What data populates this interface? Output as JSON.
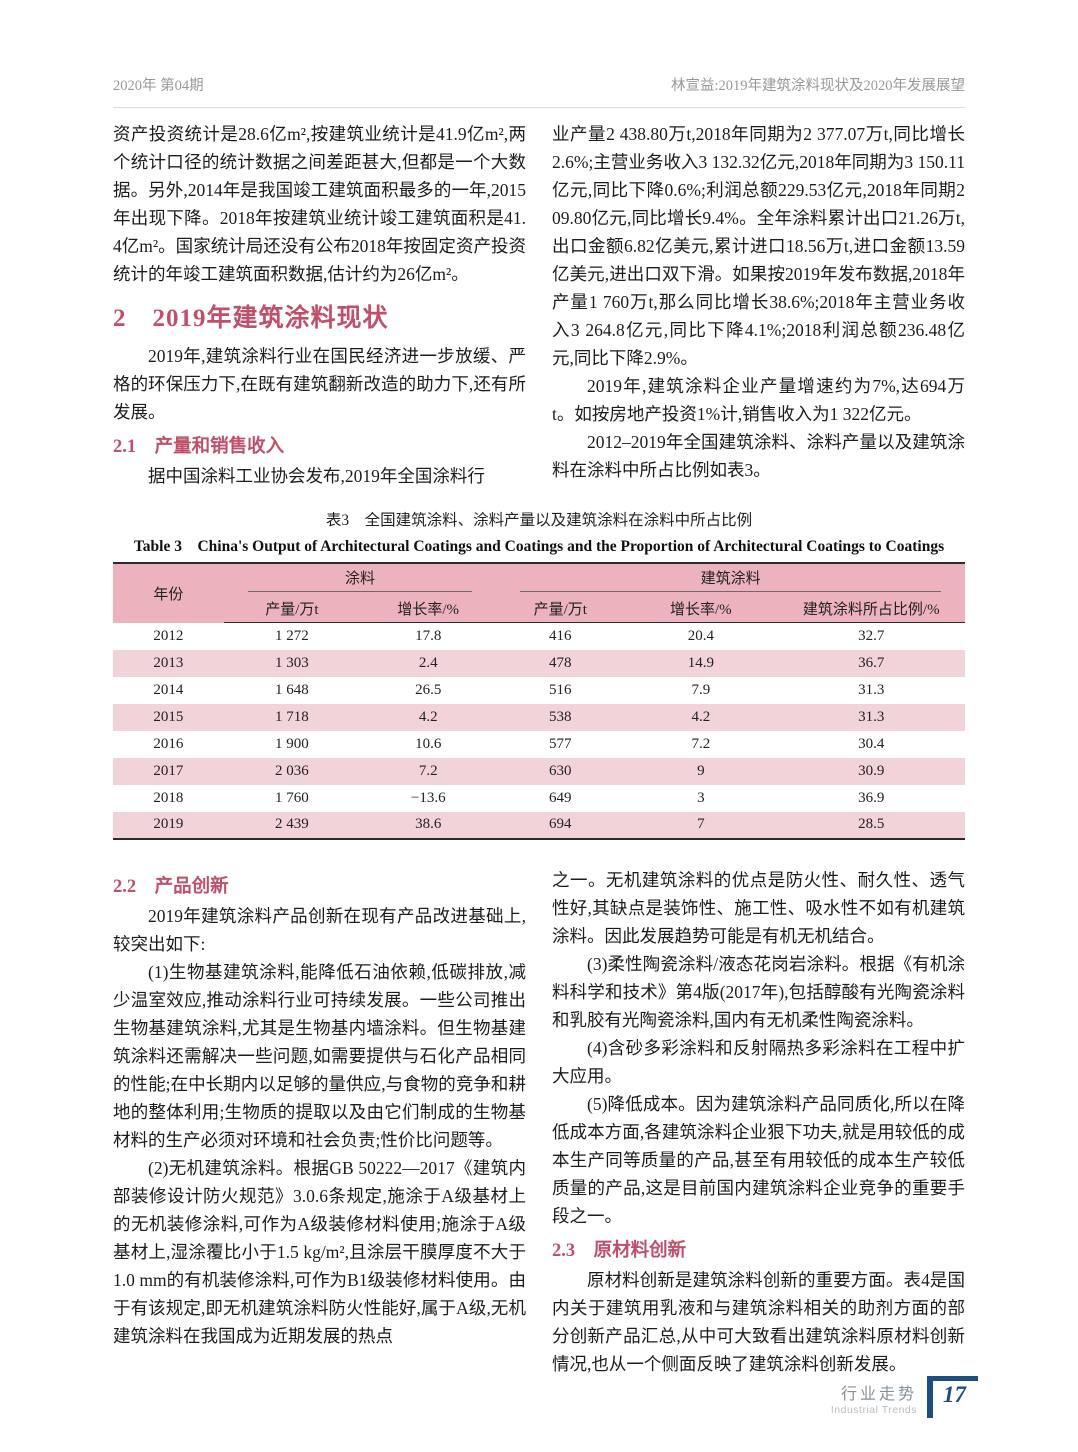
{
  "header": {
    "issue": "2020年 第04期",
    "running_title": "林宣益:2019年建筑涂料现状及2020年发展展望"
  },
  "top_left": {
    "p1": "资产投资统计是28.6亿m²,按建筑业统计是41.9亿m²,两个统计口径的统计数据之间差距甚大,但都是一个大数据。另外,2014年是我国竣工建筑面积最多的一年,2015年出现下降。2018年按建筑业统计竣工建筑面积是41.4亿m²。国家统计局还没有公布2018年按固定资产投资统计的年竣工建筑面积数据,估计约为26亿m²。",
    "sec2_title": "2　2019年建筑涂料现状",
    "p2": "2019年,建筑涂料行业在国民经济进一步放缓、严格的环保压力下,在既有建筑翻新改造的助力下,还有所发展。",
    "sec21_title": "2.1　产量和销售收入",
    "p3": "据中国涂料工业协会发布,2019年全国涂料行"
  },
  "top_right": {
    "p1": "业产量2 438.80万t,2018年同期为2 377.07万t,同比增长2.6%;主营业务收入3 132.32亿元,2018年同期为3 150.11亿元,同比下降0.6%;利润总额229.53亿元,2018年同期209.80亿元,同比增长9.4%。全年涂料累计出口21.26万t,出口金额6.82亿美元,累计进口18.56万t,进口金额13.59亿美元,进出口双下滑。如果按2019年发布数据,2018年产量1 760万t,那么同比增长38.6%;2018年主营业务收入3 264.8亿元,同比下降4.1%;2018利润总额236.48亿元,同比下降2.9%。",
    "p2": "2019年,建筑涂料企业产量增速约为7%,达694万t。如按房地产投资1%计,销售收入为1 322亿元。",
    "p3": "2012–2019年全国建筑涂料、涂料产量以及建筑涂料在涂料中所占比例如表3。"
  },
  "table": {
    "caption_cn": "表3　全国建筑涂料、涂料产量以及建筑涂料在涂料中所占比例",
    "caption_en": "Table 3　China's Output of Architectural Coatings and Coatings and the Proportion of Architectural Coatings to Coatings",
    "col_year": "年份",
    "groups": [
      "涂料",
      "建筑涂料"
    ],
    "subheaders": [
      "产量/万t",
      "增长率/%",
      "产量/万t",
      "增长率/%",
      "建筑涂料所占比例/%"
    ],
    "rows": [
      [
        "2012",
        "1 272",
        "17.8",
        "416",
        "20.4",
        "32.7"
      ],
      [
        "2013",
        "1 303",
        "2.4",
        "478",
        "14.9",
        "36.7"
      ],
      [
        "2014",
        "1 648",
        "26.5",
        "516",
        "7.9",
        "31.3"
      ],
      [
        "2015",
        "1 718",
        "4.2",
        "538",
        "4.2",
        "31.3"
      ],
      [
        "2016",
        "1 900",
        "10.6",
        "577",
        "7.2",
        "30.4"
      ],
      [
        "2017",
        "2 036",
        "7.2",
        "630",
        "9",
        "30.9"
      ],
      [
        "2018",
        "1 760",
        "−13.6",
        "649",
        "3",
        "36.9"
      ],
      [
        "2019",
        "2 439",
        "38.6",
        "694",
        "7",
        "28.5"
      ]
    ]
  },
  "bottom_left": {
    "sec22_title": "2.2　产品创新",
    "p1": "2019年建筑涂料产品创新在现有产品改进基础上,较突出如下:",
    "p2": "(1)生物基建筑涂料,能降低石油依赖,低碳排放,减少温室效应,推动涂料行业可持续发展。一些公司推出生物基建筑涂料,尤其是生物基内墙涂料。但生物基建筑涂料还需解决一些问题,如需要提供与石化产品相同的性能;在中长期内以足够的量供应,与食物的竞争和耕地的整体利用;生物质的提取以及由它们制成的生物基材料的生产必须对环境和社会负责;性价比问题等。",
    "p3": "(2)无机建筑涂料。根据GB 50222—2017《建筑内部装修设计防火规范》3.0.6条规定,施涂于A级基材上的无机装修涂料,可作为A级装修材料使用;施涂于A级基材上,湿涂覆比小于1.5 kg/m²,且涂层干膜厚度不大于1.0 mm的有机装修涂料,可作为B1级装修材料使用。由于有该规定,即无机建筑涂料防火性能好,属于A级,无机建筑涂料在我国成为近期发展的热点"
  },
  "bottom_right": {
    "p1": "之一。无机建筑涂料的优点是防火性、耐久性、透气性好,其缺点是装饰性、施工性、吸水性不如有机建筑涂料。因此发展趋势可能是有机无机结合。",
    "p2": "(3)柔性陶瓷涂料/液态花岗岩涂料。根据《有机涂料科学和技术》第4版(2017年),包括醇酸有光陶瓷涂料和乳胶有光陶瓷涂料,国内有无机柔性陶瓷涂料。",
    "p3": "(4)含砂多彩涂料和反射隔热多彩涂料在工程中扩大应用。",
    "p4": "(5)降低成本。因为建筑涂料产品同质化,所以在降低成本方面,各建筑涂料企业狠下功夫,就是用较低的成本生产同等质量的产品,甚至有用较低的成本生产较低质量的产品,这是目前国内建筑涂料企业竞争的重要手段之一。",
    "sec23_title": "2.3　原材料创新",
    "p5": "原材料创新是建筑涂料创新的重要方面。表4是国内关于建筑用乳液和与建筑涂料相关的助剂方面的部分创新产品汇总,从中可大致看出建筑涂料原材料创新情况,也从一个侧面反映了建筑涂料创新发展。"
  },
  "footer": {
    "cn": "行业走势",
    "en": "Industrial Trends",
    "page": "17"
  },
  "colors": {
    "accent_red": "#c0506a",
    "table_header_pink": "#ecb2bd",
    "table_stripe_pink": "#f3d3da",
    "footer_blue": "#1d4e7e"
  }
}
